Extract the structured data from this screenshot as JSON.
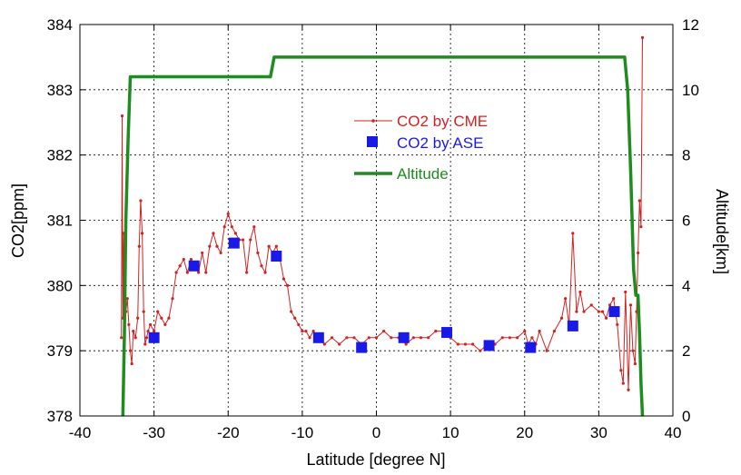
{
  "chart_data": {
    "type": "line",
    "title": "",
    "xlabel": "Latitude [degree N]",
    "ylabel": "CO2[ppm]",
    "y2label": "Altitude[km]",
    "xlim": [
      -40,
      40
    ],
    "ylim": [
      378,
      384
    ],
    "y2lim": [
      0,
      12
    ],
    "xticks": [
      "-40",
      "-30",
      "-20",
      "-10",
      "0",
      "10",
      "20",
      "30",
      "40"
    ],
    "yticks": [
      "378",
      "379",
      "380",
      "381",
      "382",
      "383",
      "384"
    ],
    "y2ticks": [
      "0",
      "2",
      "4",
      "6",
      "8",
      "10",
      "12"
    ],
    "grid": true,
    "legend_position": "upper-center",
    "series": [
      {
        "name": "CO2 by CME",
        "axis": "left",
        "color": "#d62020",
        "style": "line-with-dots",
        "x": [
          -34.4,
          -34.3,
          -34.2,
          -34.1,
          -34.0,
          -33.9,
          -33.8,
          -33.6,
          -33.4,
          -33.2,
          -33.0,
          -32.8,
          -32.5,
          -32.2,
          -32.0,
          -31.8,
          -31.6,
          -31.4,
          -31.2,
          -31.0,
          -30.8,
          -30.5,
          -30.0,
          -29.5,
          -29.0,
          -28.5,
          -28.0,
          -27.5,
          -27.0,
          -26.5,
          -26.0,
          -25.5,
          -25.0,
          -24.5,
          -24.0,
          -23.5,
          -23.0,
          -22.5,
          -22.0,
          -21.5,
          -21.0,
          -20.5,
          -20.0,
          -19.5,
          -19.0,
          -18.5,
          -18.0,
          -17.5,
          -17.0,
          -16.5,
          -16.0,
          -15.5,
          -15.0,
          -14.5,
          -14.0,
          -13.5,
          -13.0,
          -12.5,
          -12.0,
          -11.5,
          -11.0,
          -10.5,
          -10.0,
          -9.5,
          -9.0,
          -8.5,
          -8.0,
          -7.0,
          -6.0,
          -5.0,
          -4.0,
          -3.0,
          -2.0,
          -1.0,
          0.0,
          1.0,
          2.0,
          3.0,
          4.0,
          5.0,
          6.0,
          7.0,
          8.0,
          9.0,
          10.0,
          11.0,
          12.0,
          13.0,
          14.0,
          15.0,
          16.0,
          17.0,
          18.0,
          19.0,
          20.0,
          20.5,
          21.0,
          21.5,
          22.0,
          23.0,
          24.0,
          25.0,
          25.5,
          26.0,
          26.5,
          27.0,
          27.5,
          28.0,
          29.0,
          30.0,
          30.5,
          31.0,
          31.5,
          32.0,
          32.5,
          33.0,
          33.3,
          33.6,
          34.0,
          34.3,
          34.6,
          34.9,
          35.1,
          35.3,
          35.5,
          35.7,
          35.9
        ],
        "y": [
          379.2,
          382.6,
          379.5,
          380.8,
          379.3,
          380.5,
          379.6,
          379.8,
          379.4,
          379.0,
          378.8,
          379.3,
          379.2,
          379.5,
          380.6,
          381.3,
          380.8,
          379.6,
          379.1,
          379.2,
          379.3,
          379.4,
          379.3,
          379.6,
          379.5,
          379.4,
          379.5,
          379.8,
          380.2,
          380.3,
          380.4,
          380.2,
          380.4,
          380.3,
          380.2,
          380.5,
          380.2,
          380.6,
          380.8,
          380.6,
          380.5,
          380.9,
          381.1,
          380.9,
          380.8,
          380.7,
          380.7,
          380.2,
          380.7,
          380.9,
          380.5,
          380.3,
          380.2,
          380.6,
          380.5,
          380.6,
          380.4,
          380.1,
          380.0,
          379.6,
          379.5,
          379.4,
          379.3,
          379.3,
          379.2,
          379.3,
          379.2,
          379.1,
          379.2,
          379.1,
          379.2,
          379.2,
          379.1,
          379.2,
          379.2,
          379.3,
          379.2,
          379.2,
          379.1,
          379.2,
          379.2,
          379.2,
          379.3,
          379.3,
          379.2,
          379.1,
          379.1,
          379.1,
          379.0,
          379.1,
          379.1,
          379.2,
          379.2,
          379.2,
          379.3,
          379.1,
          379.2,
          379.1,
          379.3,
          379.0,
          379.3,
          379.5,
          379.8,
          379.4,
          380.8,
          379.6,
          379.9,
          379.6,
          379.7,
          379.6,
          379.6,
          379.5,
          379.7,
          379.8,
          379.4,
          378.7,
          378.5,
          379.9,
          378.4,
          379.7,
          379.0,
          378.8,
          379.6,
          380.5,
          381.3,
          380.9,
          383.8
        ]
      },
      {
        "name": "CO2 by ASE",
        "axis": "left",
        "color": "#1a1ae6",
        "style": "square-markers",
        "x": [
          -30.0,
          -24.6,
          -19.2,
          -13.5,
          -7.8,
          -2.0,
          3.7,
          9.5,
          15.2,
          20.8,
          26.5,
          32.1
        ],
        "y": [
          379.2,
          380.3,
          380.65,
          380.45,
          379.2,
          379.05,
          379.2,
          379.28,
          379.08,
          379.05,
          379.38,
          379.6
        ]
      },
      {
        "name": "Altitude",
        "axis": "right",
        "color": "#1f8c1f",
        "style": "thick-line",
        "x": [
          -34.2,
          -34.0,
          -33.8,
          -33.5,
          -33.2,
          -33.0,
          -14.3,
          -13.8,
          -13.5,
          33.5,
          33.9,
          34.3,
          34.7,
          35.0,
          35.3,
          35.5,
          35.7,
          35.9
        ],
        "y": [
          0.0,
          2.5,
          6.0,
          8.5,
          10.4,
          10.4,
          10.4,
          11.0,
          11.0,
          11.0,
          10.0,
          7.5,
          4.5,
          3.7,
          3.7,
          2.5,
          1.0,
          0.0
        ]
      }
    ]
  }
}
